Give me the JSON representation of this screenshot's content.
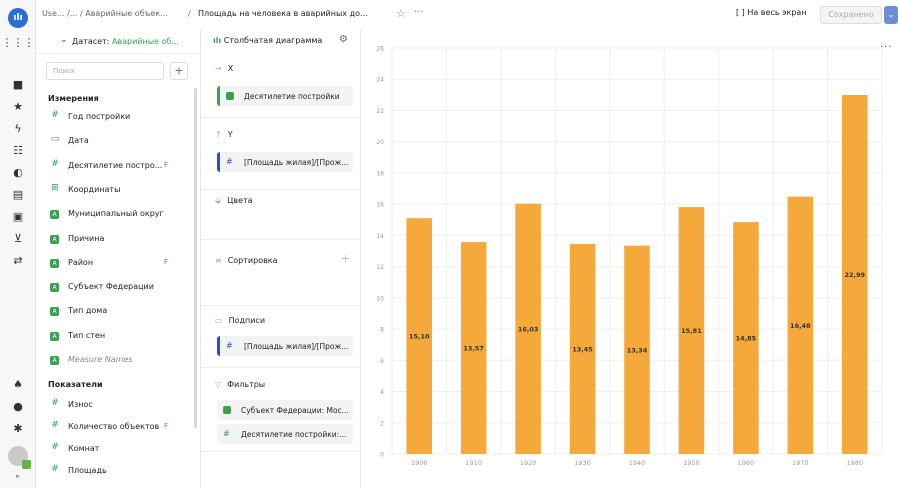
{
  "rail": {
    "logo": "ılı",
    "icons": [
      "grid-icon",
      "folder-icon",
      "star-icon",
      "bolt-icon",
      "dashboard-icon",
      "connection-icon",
      "layout-icon",
      "dataset-icon",
      "cart-icon",
      "settings-sliders-icon"
    ],
    "bottom": [
      "notifications-icon",
      "help-icon",
      "gear-icon"
    ]
  },
  "topbar": {
    "breadcrumb_1": "Use... /... / Аварийные объек...",
    "breadcrumb_sep": "/",
    "title": "Площадь на человека в аварийных до...",
    "star": "☆",
    "more": "···",
    "fullscreen": "На весь экран",
    "fullscreen_icon": "[ ]",
    "save": "Сохранено",
    "save_caret": "⌄"
  },
  "dataset": {
    "label": "Датасет:",
    "name": "Аварийные об...",
    "search_placeholder": "Поиск",
    "dimensions_title": "Измерения",
    "dimensions": [
      {
        "icon": "#",
        "name": "Год постройки",
        "fx": ""
      },
      {
        "icon": "▭",
        "name": "Дата",
        "fx": ""
      },
      {
        "icon": "#",
        "name": "Десятилетие постро...",
        "fx": "F"
      },
      {
        "icon": "⊞",
        "name": "Координаты",
        "fx": ""
      },
      {
        "icon": "A",
        "name": "Муниципальный округ",
        "fx": ""
      },
      {
        "icon": "A",
        "name": "Причина",
        "fx": ""
      },
      {
        "icon": "A",
        "name": "Район",
        "fx": "F"
      },
      {
        "icon": "A",
        "name": "Субъект Федерации",
        "fx": ""
      },
      {
        "icon": "A",
        "name": "Тип дома",
        "fx": ""
      },
      {
        "icon": "A",
        "name": "Тип стен",
        "fx": ""
      },
      {
        "icon": "A",
        "name": "Measure Names",
        "fx": ""
      }
    ],
    "measures_title": "Показатели",
    "measures": [
      {
        "icon": "#",
        "name": "Износ",
        "fx": ""
      },
      {
        "icon": "#",
        "name": "Количество объектов",
        "fx": "F"
      },
      {
        "icon": "#",
        "name": "Комнат",
        "fx": ""
      },
      {
        "icon": "#",
        "name": "Площадь",
        "fx": ""
      }
    ]
  },
  "visual": {
    "type_label": "Столбчатая диаграмма",
    "x_label": "X",
    "x_field": "Десятилетие постройки",
    "y_label": "Y",
    "y_field": "[Площадь жилая]/[Прож...",
    "colors_label": "Цвета",
    "sort_label": "Сортировка",
    "labels_label": "Подписи",
    "labels_field": "[Площадь жилая]/[Прож...",
    "filters_label": "Фильтры",
    "filter_1": "Субъект Федерации: Мос...",
    "filter_2": "Десятилетие постройки:..."
  },
  "chart_data": {
    "type": "bar",
    "categories": [
      "1900",
      "1910",
      "1920",
      "1930",
      "1940",
      "1950",
      "1960",
      "1970",
      "1980"
    ],
    "values": [
      15.1,
      13.57,
      16.03,
      13.45,
      13.34,
      15.81,
      14.85,
      16.48,
      22.99
    ],
    "data_labels": [
      "15,10",
      "13,57",
      "16,03",
      "13,45",
      "13,34",
      "15,81",
      "14,85",
      "16,48",
      "22,99"
    ],
    "yticks": [
      0,
      2,
      4,
      6,
      8,
      10,
      12,
      14,
      16,
      18,
      20,
      22,
      24,
      26
    ],
    "ylim": [
      0,
      26
    ],
    "bar_color": "#f5a93b",
    "grid": true,
    "more": "···"
  }
}
